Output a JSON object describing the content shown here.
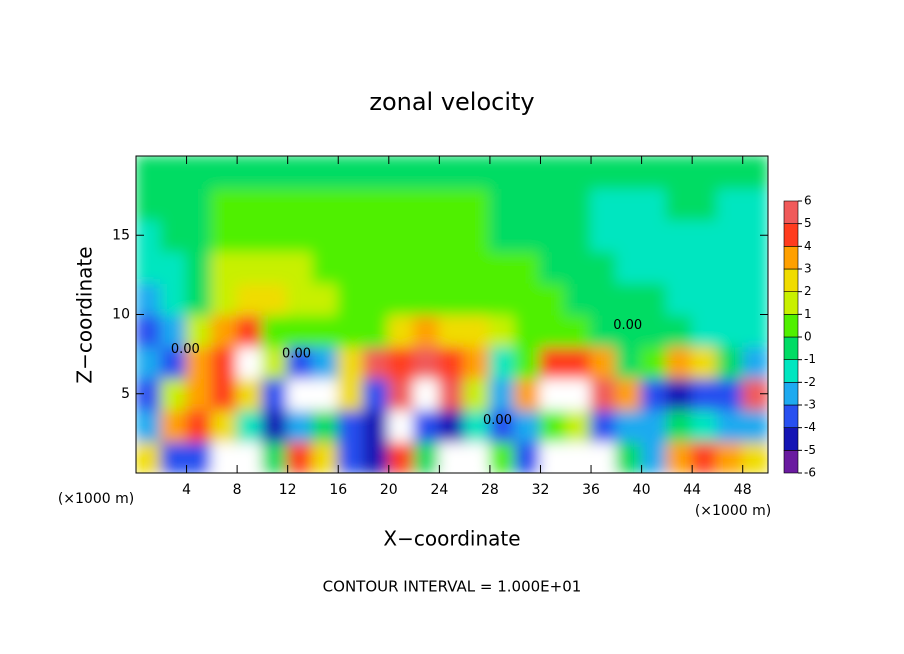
{
  "chart_data": {
    "type": "heatmap",
    "title": "zonal velocity",
    "xlabel": "X−coordinate",
    "ylabel": "Z−coordinate",
    "xunit_left": "(×1000 m)",
    "xunit_right": "(×1000 m)",
    "footer": "CONTOUR INTERVAL = 1.000E+01",
    "xlim": [
      0,
      50
    ],
    "ylim": [
      0,
      20
    ],
    "xticks": [
      4,
      8,
      12,
      16,
      20,
      24,
      28,
      32,
      36,
      40,
      44,
      48
    ],
    "yticks": [
      5,
      10,
      15
    ],
    "x": [
      1,
      3,
      5,
      7,
      9,
      11,
      13,
      15,
      17,
      19,
      21,
      23,
      25,
      27,
      29,
      31,
      33,
      35,
      37,
      39,
      41,
      43,
      45,
      47,
      49
    ],
    "y": [
      1,
      3,
      5,
      7,
      9,
      11,
      13,
      15,
      17,
      19
    ],
    "z": [
      [
        3,
        -3,
        -3,
        6.5,
        6.5,
        0,
        5,
        3,
        -3,
        -4,
        5,
        0,
        6.5,
        6.5,
        1,
        -3,
        6.5,
        6.5,
        6.5,
        0,
        -2,
        4,
        5,
        4,
        3
      ],
      [
        -2,
        4,
        5,
        3,
        -1,
        -4,
        -2,
        0,
        -3,
        -4,
        6.5,
        -3,
        -4,
        -1,
        -3,
        -2,
        1,
        2,
        -3,
        -2,
        -2,
        0,
        -1,
        -2,
        -2
      ],
      [
        -3,
        2,
        4,
        5,
        3,
        -3,
        6.5,
        6.5,
        3,
        -3,
        6,
        6.5,
        6,
        2,
        -2,
        4,
        6.5,
        6.5,
        6,
        4,
        -3,
        -4,
        -3,
        -3,
        6
      ],
      [
        -2,
        -3,
        4,
        5,
        6.5,
        2,
        -3,
        -2,
        3,
        6,
        5,
        6,
        5,
        4,
        -1,
        1,
        5,
        5,
        4,
        0,
        1,
        4,
        3,
        0,
        -2
      ],
      [
        -3,
        -2,
        2,
        4,
        5,
        1,
        1,
        1,
        0.5,
        1,
        3,
        4,
        3,
        3,
        2,
        1,
        1,
        0.5,
        0,
        0,
        -0.5,
        -0.5,
        -1,
        -1,
        -1
      ],
      [
        -2,
        -1.5,
        0,
        2,
        3,
        2.5,
        2,
        1.5,
        1,
        1,
        0.5,
        0.5,
        0.5,
        0.5,
        0.5,
        0.5,
        0.3,
        0,
        0,
        -0.5,
        -0.5,
        -1,
        -1,
        -1,
        -1
      ],
      [
        -1,
        -1,
        0,
        1.5,
        1.5,
        1.5,
        1.5,
        1,
        1,
        0.5,
        0.5,
        0.5,
        0.5,
        0.5,
        0.3,
        0.3,
        0,
        0,
        -0.5,
        -1,
        -1,
        -1,
        -1,
        -1,
        -1
      ],
      [
        -1,
        -0.5,
        0,
        1,
        1,
        1,
        1,
        1,
        0.5,
        0.5,
        0.3,
        0.3,
        0.3,
        0.3,
        0,
        0,
        -0.3,
        -0.5,
        -1,
        -1,
        -1,
        -1,
        -1,
        -1,
        -1
      ],
      [
        -0.5,
        -0.5,
        0,
        0.5,
        0.5,
        0.5,
        0.5,
        0.5,
        0.5,
        0.3,
        0.3,
        0.3,
        0.3,
        0.3,
        0,
        0,
        -0.5,
        -0.5,
        -1,
        -1,
        -1,
        -0.5,
        -0.5,
        -1,
        -1
      ],
      [
        -0.5,
        -0.5,
        0,
        0,
        0,
        0,
        0,
        0,
        0,
        0,
        0,
        0,
        0,
        0,
        0,
        0,
        0,
        -0.5,
        -0.5,
        -0.5,
        -0.5,
        -0.5,
        -0.5,
        -0.5,
        -0.5
      ]
    ],
    "levels": [
      -6,
      -5,
      -4,
      -3,
      -2,
      -1,
      0,
      1,
      2,
      3,
      4,
      5,
      6
    ],
    "colors": [
      "#6a1aa0",
      "#1414b4",
      "#2850f0",
      "#1eaaf0",
      "#00e6c0",
      "#00dc64",
      "#50f000",
      "#c8f000",
      "#f0dc00",
      "#ffa000",
      "#ff3c1e",
      "#f05a5a"
    ],
    "over_color": "#ffffff",
    "annotations": [
      {
        "text": "0.00",
        "x": 3.9,
        "y": 7.8
      },
      {
        "text": "0.00",
        "x": 12.7,
        "y": 7.5
      },
      {
        "text": "0.00",
        "x": 28.6,
        "y": 3.3
      },
      {
        "text": "0.00",
        "x": 38.9,
        "y": 9.3
      }
    ]
  }
}
